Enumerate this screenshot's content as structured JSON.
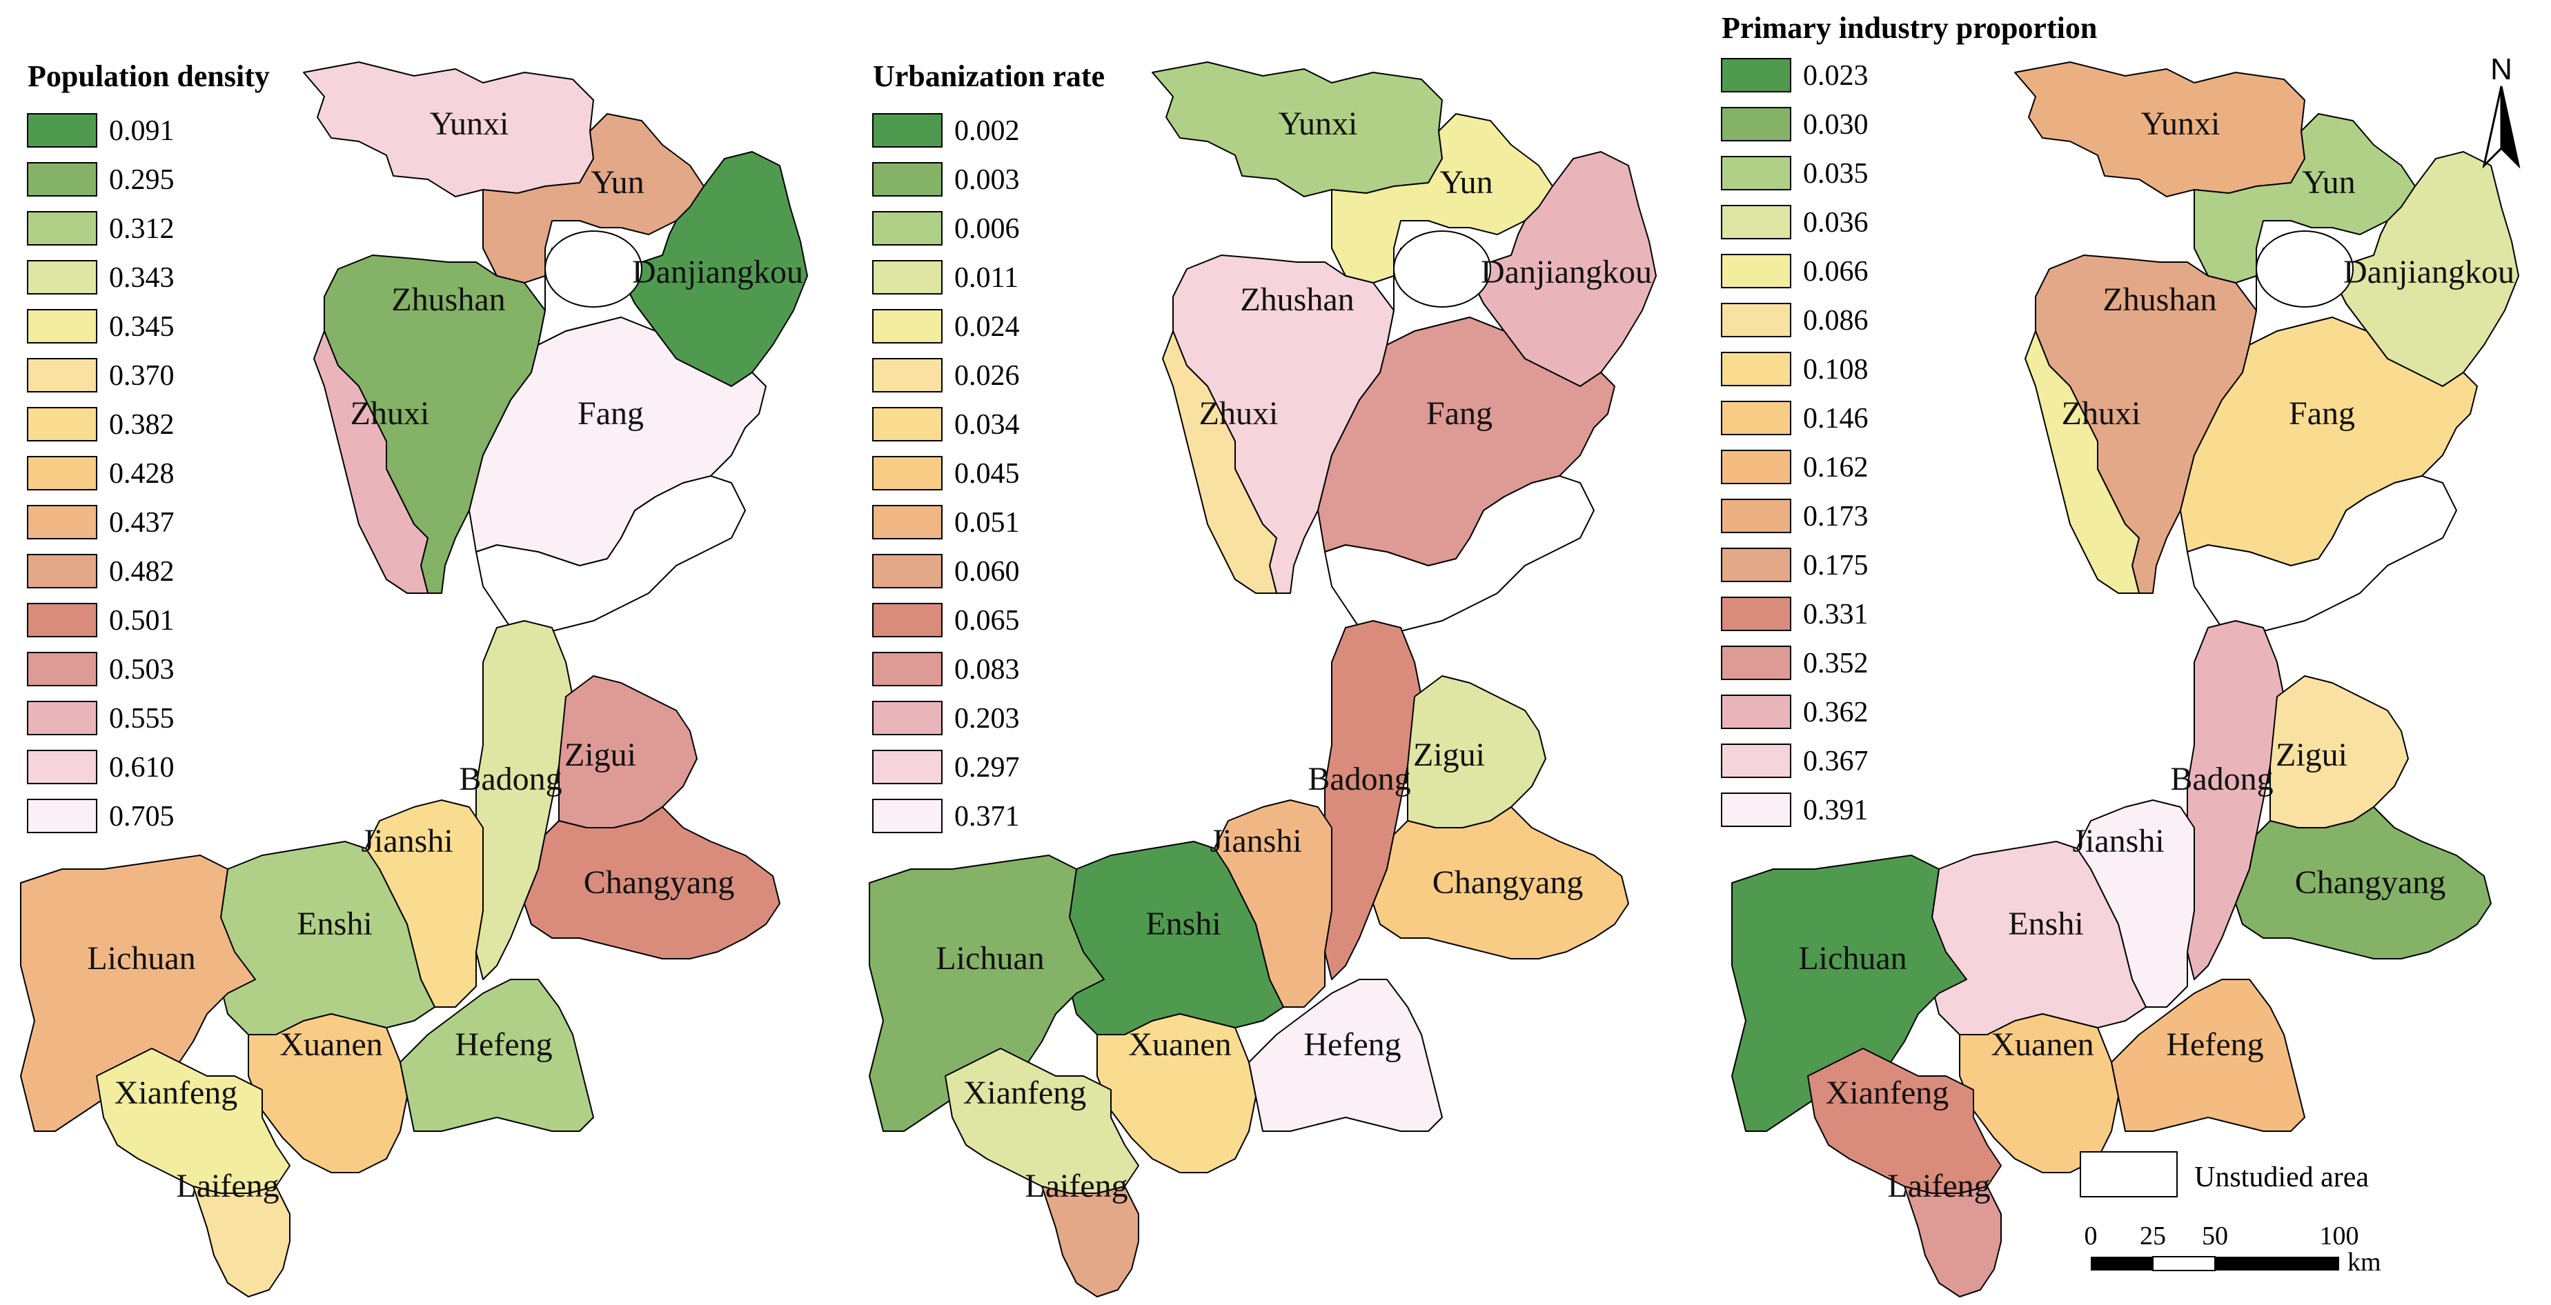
{
  "panels": [
    {
      "id": "population",
      "title": "Population density",
      "legend": [
        {
          "label": "0.091",
          "color": "#4f9a4f"
        },
        {
          "label": "0.295",
          "color": "#84b266"
        },
        {
          "label": "0.312",
          "color": "#afd086"
        },
        {
          "label": "0.343",
          "color": "#dfe5a2"
        },
        {
          "label": "0.345",
          "color": "#f2ed9f"
        },
        {
          "label": "0.370",
          "color": "#f9e1a1"
        },
        {
          "label": "0.382",
          "color": "#f9dc8f"
        },
        {
          "label": "0.428",
          "color": "#f8cc85"
        },
        {
          "label": "0.437",
          "color": "#f0b785"
        },
        {
          "label": "0.482",
          "color": "#e3a887"
        },
        {
          "label": "0.501",
          "color": "#d98c7c"
        },
        {
          "label": "0.503",
          "color": "#de9a95"
        },
        {
          "label": "0.555",
          "color": "#e9b5bb"
        },
        {
          "label": "0.610",
          "color": "#f5d4dc"
        },
        {
          "label": "0.705",
          "color": "#fcf0f7"
        }
      ],
      "counties": {
        "Yunxi": "#f5d4dc",
        "Yun": "#e3a887",
        "Danjiangkou": "#4f9a4f",
        "Zhushan": "#84b266",
        "Zhuxi": "#e9b5bb",
        "Fang": "#fcf0f7",
        "Badong": "#dfe5a2",
        "Zigui": "#de9a95",
        "Changyang": "#d98c7c",
        "Jianshi": "#f9dc8f",
        "Enshi": "#afd086",
        "Lichuan": "#f0b785",
        "Xuanen": "#f8cc85",
        "Hefeng": "#afd086",
        "Xianfeng": "#f2ed9f",
        "Laifeng": "#f9e1a1"
      }
    },
    {
      "id": "urbanization",
      "title": "Urbanization rate",
      "legend": [
        {
          "label": "0.002",
          "color": "#4f9a4f"
        },
        {
          "label": "0.003",
          "color": "#84b266"
        },
        {
          "label": "0.006",
          "color": "#afd086"
        },
        {
          "label": "0.011",
          "color": "#dfe5a2"
        },
        {
          "label": "0.024",
          "color": "#f2ed9f"
        },
        {
          "label": "0.026",
          "color": "#f9e1a1"
        },
        {
          "label": "0.034",
          "color": "#f9dc8f"
        },
        {
          "label": "0.045",
          "color": "#f8cc85"
        },
        {
          "label": "0.051",
          "color": "#f0b785"
        },
        {
          "label": "0.060",
          "color": "#e3a887"
        },
        {
          "label": "0.065",
          "color": "#d98c7c"
        },
        {
          "label": "0.083",
          "color": "#de9a95"
        },
        {
          "label": "0.203",
          "color": "#e9b5bb"
        },
        {
          "label": "0.297",
          "color": "#f5d4dc"
        },
        {
          "label": "0.371",
          "color": "#fcf0f7"
        }
      ],
      "counties": {
        "Yunxi": "#afd086",
        "Yun": "#f2ed9f",
        "Danjiangkou": "#e9b5bb",
        "Zhushan": "#f5d4dc",
        "Zhuxi": "#f9e1a1",
        "Fang": "#de9a95",
        "Badong": "#d98c7c",
        "Zigui": "#dfe5a2",
        "Changyang": "#f8cc85",
        "Jianshi": "#f0b785",
        "Enshi": "#4f9a4f",
        "Lichuan": "#84b266",
        "Xuanen": "#f9dc8f",
        "Hefeng": "#fcf0f7",
        "Xianfeng": "#dfe5a2",
        "Laifeng": "#e3a887"
      }
    },
    {
      "id": "primary",
      "title": "Primary industry proportion",
      "legend": [
        {
          "label": "0.023",
          "color": "#4f9a4f"
        },
        {
          "label": "0.030",
          "color": "#84b266"
        },
        {
          "label": "0.035",
          "color": "#afd086"
        },
        {
          "label": "0.036",
          "color": "#dfe5a2"
        },
        {
          "label": "0.066",
          "color": "#f2ed9f"
        },
        {
          "label": "0.086",
          "color": "#f9e1a1"
        },
        {
          "label": "0.108",
          "color": "#f9dc8f"
        },
        {
          "label": "0.146",
          "color": "#f8cc85"
        },
        {
          "label": "0.162",
          "color": "#f4bc80"
        },
        {
          "label": "0.173",
          "color": "#ebb082"
        },
        {
          "label": "0.175",
          "color": "#e3a887"
        },
        {
          "label": "0.331",
          "color": "#d98c7c"
        },
        {
          "label": "0.352",
          "color": "#de9a95"
        },
        {
          "label": "0.362",
          "color": "#e9b5bb"
        },
        {
          "label": "0.367",
          "color": "#f5d4dc"
        },
        {
          "label": "0.391",
          "color": "#fcf0f7"
        }
      ],
      "counties": {
        "Yunxi": "#ebb082",
        "Yun": "#afd086",
        "Danjiangkou": "#dfe5a2",
        "Zhushan": "#e3a887",
        "Zhuxi": "#f2ed9f",
        "Fang": "#f9dc8f",
        "Badong": "#e9b5bb",
        "Zigui": "#f9e1a1",
        "Changyang": "#84b266",
        "Jianshi": "#fcf0f7",
        "Enshi": "#f5d4dc",
        "Lichuan": "#4f9a4f",
        "Xuanen": "#f8cc85",
        "Hefeng": "#f4bc80",
        "Xianfeng": "#d98c7c",
        "Laifeng": "#de9a95"
      }
    }
  ],
  "unstudied_label": "Unstudied area",
  "unstudied_color": "#ffffff",
  "scale_bar": {
    "ticks": [
      "0",
      "25",
      "50",
      "100"
    ],
    "unit": "km"
  },
  "north_label": "N"
}
